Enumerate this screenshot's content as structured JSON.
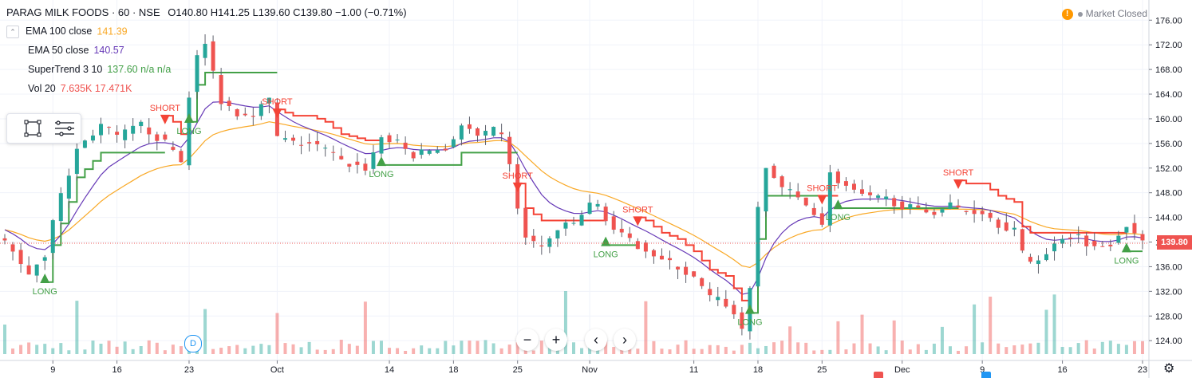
{
  "header": {
    "symbol": "PARAG MILK FOODS · 60 · NSE",
    "open": "O140.80",
    "high": "H141.25",
    "low": "L139.60",
    "close": "C139.80",
    "change": "−1.00 (−0.71%)"
  },
  "indicators": [
    {
      "name": "EMA 100 close",
      "value": "141.39",
      "color": "#f9a825"
    },
    {
      "name": "EMA 50 close",
      "value": "140.57",
      "color": "#673ab7"
    },
    {
      "name": "SuperTrend 3 10",
      "value": "137.60  n/a  n/a",
      "color": "#43a047"
    },
    {
      "name": "Vol 20",
      "value": "7.635K  17.471K",
      "color": "#ef5350"
    }
  ],
  "status": {
    "market": "Market Closed"
  },
  "nav_icons": [
    "zoom-out-icon",
    "zoom-in-icon",
    "scroll-left-icon",
    "scroll-right-icon"
  ],
  "nav_glyphs": {
    "zoom_out": "−",
    "zoom_in": "+",
    "left": "‹",
    "right": "›"
  },
  "dividend_badge": "D",
  "last_price_label": "139.80",
  "colors": {
    "up": "#26a69a",
    "down": "#ef5350",
    "supertrend_up": "#43a047",
    "supertrend_down": "#f44336",
    "ema100": "#f9a825",
    "ema50": "#673ab7",
    "last_price_line": "#ef5350",
    "grid": "#f0f3fa"
  },
  "chart_data": {
    "type": "candlestick",
    "y_ticks": [
      "176.00",
      "172.00",
      "168.00",
      "164.00",
      "160.00",
      "156.00",
      "152.00",
      "148.00",
      "144.00",
      "140.00",
      "136.00",
      "132.00",
      "128.00",
      "124.00"
    ],
    "y_tick_values": [
      176,
      172,
      168,
      164,
      160,
      156,
      152,
      148,
      144,
      140,
      136,
      132,
      128,
      124
    ],
    "ylim": [
      122.6,
      177.2
    ],
    "x_ticks": [
      "9",
      "16",
      "23",
      "Oct",
      "14",
      "18",
      "25",
      "Nov",
      "11",
      "18",
      "25",
      "Dec",
      "9",
      "16",
      "23"
    ],
    "x_tick_index": [
      6,
      14,
      23,
      34,
      48,
      56,
      64,
      73,
      86,
      94,
      102,
      112,
      122,
      132,
      142
    ],
    "price_anchors": [
      [
        0,
        140
      ],
      [
        3,
        135
      ],
      [
        5,
        138
      ],
      [
        6,
        144
      ],
      [
        8,
        151
      ],
      [
        9,
        155
      ],
      [
        12,
        159
      ],
      [
        14,
        157
      ],
      [
        17,
        159
      ],
      [
        19,
        157
      ],
      [
        21,
        155
      ],
      [
        22,
        153
      ],
      [
        23,
        164
      ],
      [
        24,
        170
      ],
      [
        25,
        172
      ],
      [
        27,
        163
      ],
      [
        29,
        161
      ],
      [
        31,
        161
      ],
      [
        33,
        163
      ],
      [
        34,
        157
      ],
      [
        36,
        156
      ],
      [
        38,
        156
      ],
      [
        40,
        155
      ],
      [
        42,
        153
      ],
      [
        45,
        152
      ],
      [
        47,
        157
      ],
      [
        49,
        156
      ],
      [
        51,
        154
      ],
      [
        53,
        155
      ],
      [
        55,
        155
      ],
      [
        57,
        159
      ],
      [
        59,
        157
      ],
      [
        61,
        158
      ],
      [
        62,
        157
      ],
      [
        63,
        153
      ],
      [
        64,
        145
      ],
      [
        65,
        141
      ],
      [
        67,
        139
      ],
      [
        69,
        142
      ],
      [
        71,
        143
      ],
      [
        73,
        146
      ],
      [
        74,
        146
      ],
      [
        75,
        144
      ],
      [
        76,
        142
      ],
      [
        78,
        140
      ],
      [
        80,
        139
      ],
      [
        82,
        137
      ],
      [
        84,
        136
      ],
      [
        86,
        134
      ],
      [
        88,
        131
      ],
      [
        90,
        130
      ],
      [
        91,
        128
      ],
      [
        92,
        126
      ],
      [
        93,
        133
      ],
      [
        94,
        145
      ],
      [
        95,
        152
      ],
      [
        97,
        149
      ],
      [
        99,
        147
      ],
      [
        101,
        145
      ],
      [
        102,
        143
      ],
      [
        103,
        151
      ],
      [
        104,
        150
      ],
      [
        106,
        148
      ],
      [
        108,
        147
      ],
      [
        110,
        147
      ],
      [
        112,
        146
      ],
      [
        114,
        145
      ],
      [
        116,
        145
      ],
      [
        118,
        146
      ],
      [
        120,
        145
      ],
      [
        122,
        145
      ],
      [
        124,
        143
      ],
      [
        126,
        142
      ],
      [
        127,
        138
      ],
      [
        128,
        137
      ],
      [
        130,
        138
      ],
      [
        132,
        141
      ],
      [
        134,
        141
      ],
      [
        136,
        139
      ],
      [
        138,
        140
      ],
      [
        140,
        143
      ],
      [
        141,
        141
      ],
      [
        142,
        139.8
      ]
    ],
    "volume_max": "",
    "signals": [
      {
        "label": "LONG",
        "index": 5,
        "dir": "up"
      },
      {
        "label": "SHORT",
        "index": 20,
        "dir": "down"
      },
      {
        "label": "LONG",
        "index": 23,
        "dir": "up"
      },
      {
        "label": "SHORT",
        "index": 34,
        "dir": "down"
      },
      {
        "label": "LONG",
        "index": 47,
        "dir": "up"
      },
      {
        "label": "SHORT",
        "index": 64,
        "dir": "down"
      },
      {
        "label": "LONG",
        "index": 75,
        "dir": "up"
      },
      {
        "label": "SHORT",
        "index": 79,
        "dir": "down"
      },
      {
        "label": "LONG",
        "index": 93,
        "dir": "up"
      },
      {
        "label": "SHORT",
        "index": 102,
        "dir": "down"
      },
      {
        "label": "LONG",
        "index": 104,
        "dir": "up"
      },
      {
        "label": "SHORT",
        "index": 119,
        "dir": "down"
      },
      {
        "label": "LONG",
        "index": 140,
        "dir": "up"
      }
    ],
    "last_price": 139.8
  }
}
